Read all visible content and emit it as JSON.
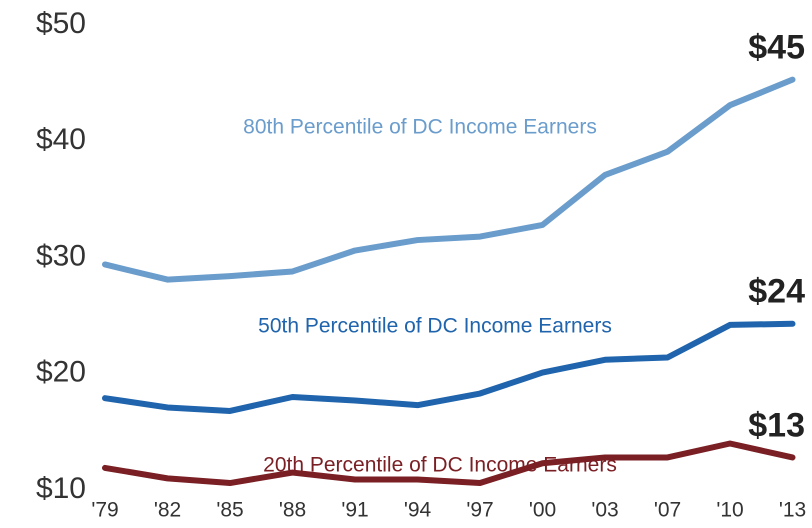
{
  "chart_data": {
    "type": "line",
    "categories": [
      "'79",
      "'82",
      "'85",
      "'88",
      "'91",
      "'94",
      "'97",
      "'00",
      "'03",
      "'07",
      "'10",
      "'13"
    ],
    "series": [
      {
        "name": "80th Percentile of DC Income Earners",
        "color": "#6a9ccc",
        "values": [
          29.4,
          28.1,
          28.4,
          28.8,
          30.6,
          31.5,
          31.8,
          32.8,
          37.1,
          39.1,
          43.1,
          45.3
        ],
        "value_labels": [
          null,
          null,
          null,
          null,
          null,
          null,
          null,
          null,
          null,
          null,
          null,
          "$45"
        ]
      },
      {
        "name": "50th Percentile of DC Income Earners",
        "color": "#1f64ac",
        "values": [
          17.9,
          17.1,
          16.8,
          18.0,
          17.7,
          17.3,
          18.3,
          20.1,
          21.2,
          21.4,
          24.2,
          24.3
        ],
        "value_labels": [
          null,
          null,
          null,
          null,
          null,
          null,
          null,
          null,
          null,
          null,
          null,
          "$24"
        ]
      },
      {
        "name": "20th Percentile of DC Income Earners",
        "color": "#7a1f24",
        "values": [
          11.9,
          11.0,
          10.6,
          11.5,
          10.9,
          10.9,
          10.6,
          12.3,
          12.8,
          12.8,
          14.0,
          12.8
        ],
        "value_labels": [
          null,
          null,
          null,
          null,
          null,
          null,
          null,
          null,
          null,
          null,
          null,
          "$13"
        ]
      }
    ],
    "ylim": [
      10,
      50
    ],
    "yticks": [
      {
        "value": 10,
        "label": "$10"
      },
      {
        "value": 20,
        "label": "$20"
      },
      {
        "value": 30,
        "label": "$30"
      },
      {
        "value": 40,
        "label": "$40"
      },
      {
        "value": 50,
        "label": "$50"
      }
    ],
    "grid": false
  }
}
